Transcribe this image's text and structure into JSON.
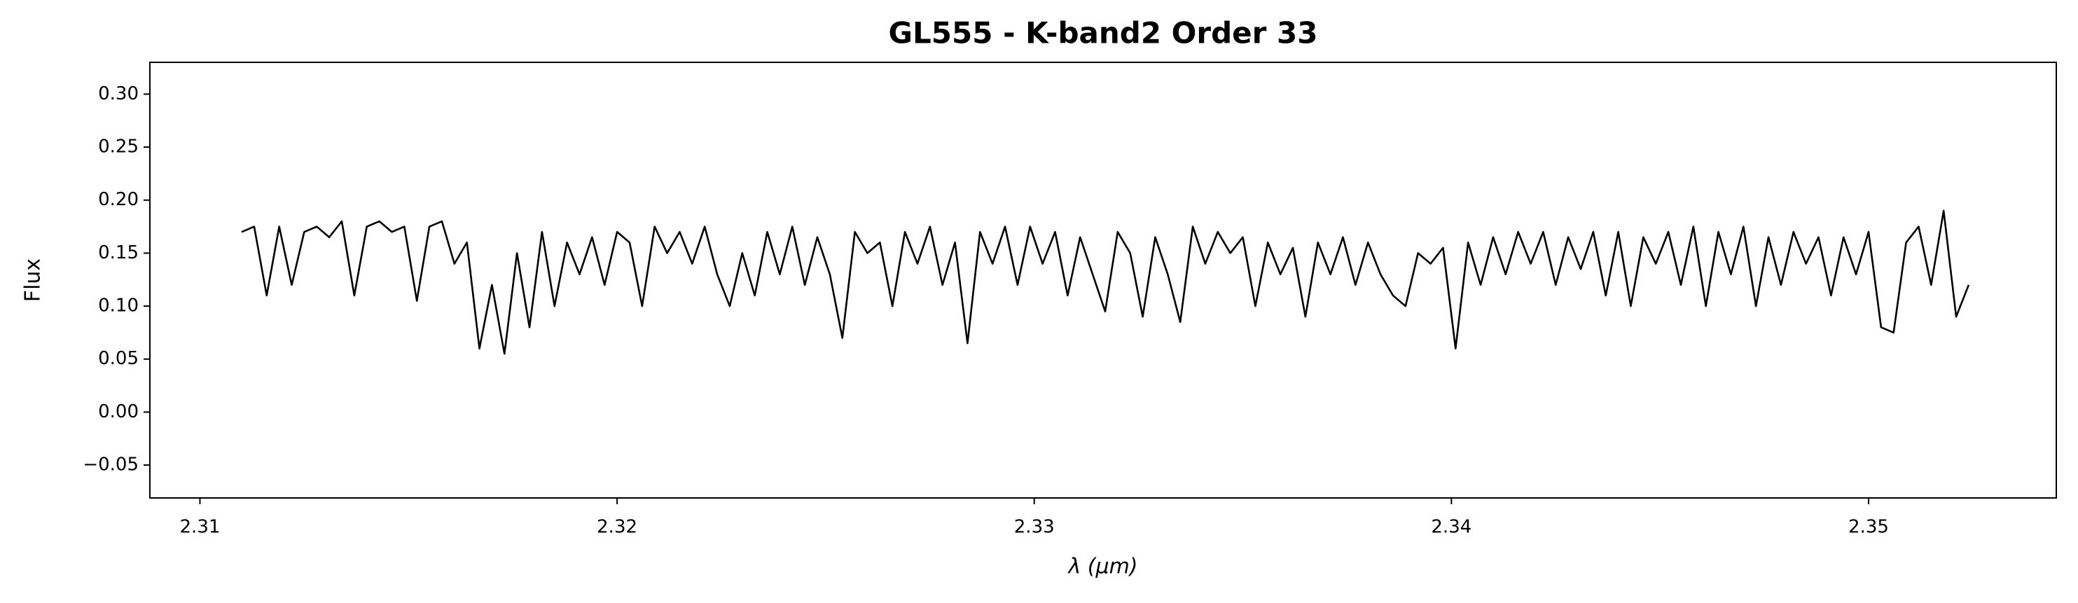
{
  "chart_data": {
    "type": "line",
    "title": "GL555 - K-band2 Order 33",
    "x_label": "λ (μm)",
    "y_label": "Flux",
    "x": [
      2.311,
      2.3113,
      2.3116,
      2.3119,
      2.3122,
      2.3125,
      2.3128,
      2.3131,
      2.3134,
      2.3137,
      2.314,
      2.3143,
      2.3146,
      2.3149,
      2.3152,
      2.3155,
      2.3158,
      2.3161,
      2.3164,
      2.3167,
      2.317,
      2.3173,
      2.3176,
      2.3179,
      2.3182,
      2.3185,
      2.3188,
      2.3191,
      2.3194,
      2.3197,
      2.32,
      2.3203,
      2.3206,
      2.3209,
      2.3212,
      2.3215,
      2.3218,
      2.3221,
      2.3224,
      2.3227,
      2.323,
      2.3233,
      2.3236,
      2.3239,
      2.3242,
      2.3245,
      2.3248,
      2.3251,
      2.3254,
      2.3257,
      2.326,
      2.3263,
      2.3266,
      2.3269,
      2.3272,
      2.3275,
      2.3278,
      2.3281,
      2.3284,
      2.3287,
      2.329,
      2.3293,
      2.3296,
      2.3299,
      2.3302,
      2.3305,
      2.3308,
      2.3311,
      2.3314,
      2.3317,
      2.332,
      2.3323,
      2.3326,
      2.3329,
      2.3332,
      2.3335,
      2.3338,
      2.3341,
      2.3344,
      2.3347,
      2.335,
      2.3353,
      2.3356,
      2.3359,
      2.3362,
      2.3365,
      2.3368,
      2.3371,
      2.3374,
      2.3377,
      2.338,
      2.3383,
      2.3386,
      2.3389,
      2.3392,
      2.3395,
      2.3398,
      2.3401,
      2.3404,
      2.3407,
      2.341,
      2.3413,
      2.3416,
      2.3419,
      2.3422,
      2.3425,
      2.3428,
      2.3431,
      2.3434,
      2.3437,
      2.344,
      2.3443,
      2.3446,
      2.3449,
      2.3452,
      2.3455,
      2.3458,
      2.3461,
      2.3464,
      2.3467,
      2.347,
      2.3473,
      2.3476,
      2.3479,
      2.3482,
      2.3485,
      2.3488,
      2.3491,
      2.3494,
      2.3497,
      2.35,
      2.3503,
      2.3506,
      2.3509,
      2.3512,
      2.3515,
      2.3518,
      2.3521,
      2.3524
    ],
    "series": [
      {
        "color": "#000000",
        "values": [
          0.17,
          0.175,
          0.11,
          0.175,
          0.12,
          0.17,
          0.175,
          0.165,
          0.18,
          0.11,
          0.175,
          0.18,
          0.17,
          0.175,
          0.105,
          0.175,
          0.18,
          0.14,
          0.16,
          0.06,
          0.12,
          0.055,
          0.15,
          0.08,
          0.17,
          0.1,
          0.16,
          0.13,
          0.165,
          0.12,
          0.17,
          0.16,
          0.1,
          0.175,
          0.15,
          0.17,
          0.14,
          0.175,
          0.13,
          0.1,
          0.15,
          0.11,
          0.17,
          0.13,
          0.175,
          0.12,
          0.165,
          0.13,
          0.07,
          0.17,
          0.15,
          0.16,
          0.1,
          0.17,
          0.14,
          0.175,
          0.12,
          0.16,
          0.065,
          0.17,
          0.14,
          0.175,
          0.12,
          0.175,
          0.14,
          0.17,
          0.11,
          0.165,
          0.13,
          0.095,
          0.17,
          0.15,
          0.09,
          0.165,
          0.13,
          0.085,
          0.175,
          0.14,
          0.17,
          0.15,
          0.165,
          0.1,
          0.16,
          0.13,
          0.155,
          0.09,
          0.16,
          0.13,
          0.165,
          0.12,
          0.16,
          0.13,
          0.11,
          0.1,
          0.15,
          0.14,
          0.155,
          0.06,
          0.16,
          0.12,
          0.165,
          0.13,
          0.17,
          0.14,
          0.17,
          0.12,
          0.165,
          0.135,
          0.17,
          0.11,
          0.17,
          0.1,
          0.165,
          0.14,
          0.17,
          0.12,
          0.175,
          0.1,
          0.17,
          0.13,
          0.175,
          0.1,
          0.165,
          0.12,
          0.17,
          0.14,
          0.165,
          0.11,
          0.165,
          0.13,
          0.17,
          0.08,
          0.075,
          0.16,
          0.175,
          0.12,
          0.19,
          0.09,
          0.12
        ]
      }
    ],
    "xlim": [
      2.3088,
      2.3545
    ],
    "ylim": [
      -0.081,
      0.33
    ],
    "xticks": [
      2.31,
      2.32,
      2.33,
      2.34,
      2.35
    ],
    "yticks": [
      {
        "value": -0.05,
        "label": "−0.05"
      },
      {
        "value": 0,
        "label": "0.00"
      },
      0.05,
      {
        "value": 0.1,
        "label": "0.10"
      },
      0.15,
      {
        "value": 0.2,
        "label": "0.20"
      },
      0.25,
      {
        "value": 0.3,
        "label": "0.30"
      }
    ]
  }
}
